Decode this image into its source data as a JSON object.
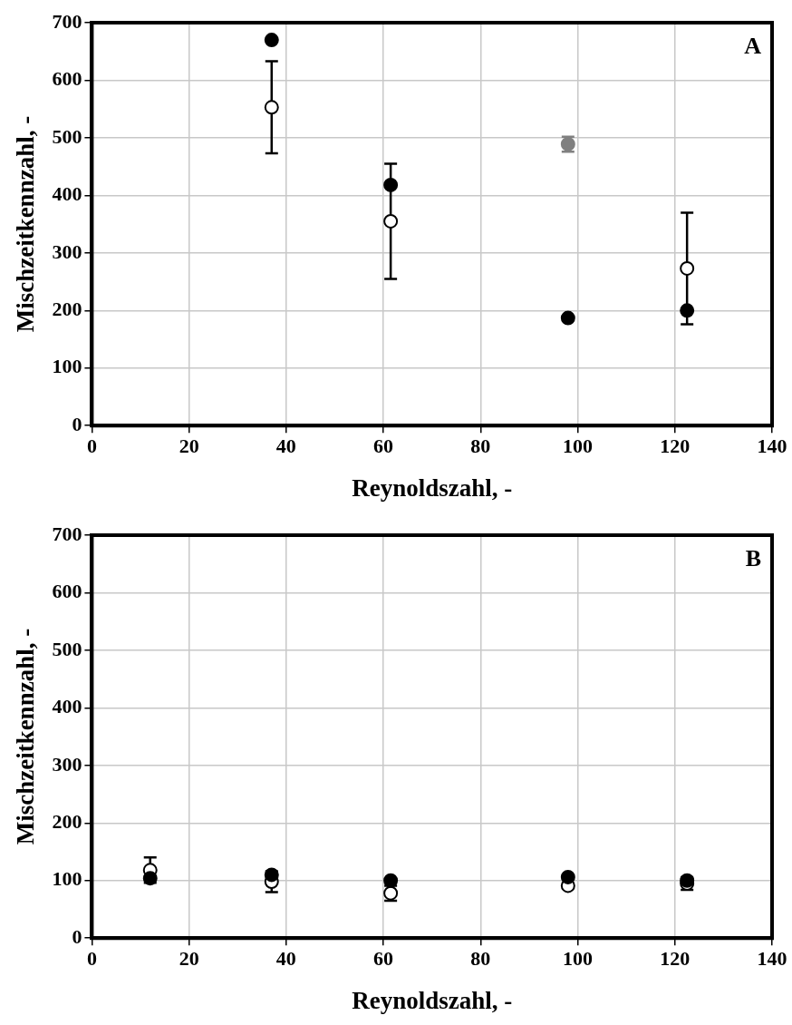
{
  "chart_data": [
    {
      "type": "scatter",
      "xlabel": "Reynoldszahl, -",
      "ylabel": "Mischzeitkennzahl, -",
      "annotations": [
        "A"
      ],
      "xlim": [
        0,
        140
      ],
      "xticks": [
        0,
        20,
        40,
        60,
        80,
        100,
        120,
        140
      ],
      "ylim": [
        0,
        700
      ],
      "yticks": [
        0,
        100,
        200,
        300,
        400,
        500,
        600,
        700
      ],
      "grid": true,
      "legend": false,
      "marker": "circle",
      "series": [
        {
          "color": "#000000",
          "x": [
            37,
            61.5,
            98,
            122.5
          ],
          "values": [
            670,
            418,
            187,
            200
          ]
        },
        {
          "color": "#ffffff",
          "x": [
            37,
            61.5,
            122.5
          ],
          "values": [
            553,
            355,
            273
          ],
          "errors": [
            80,
            100,
            97
          ]
        },
        {
          "color": "#808080",
          "x": [
            98
          ],
          "values": [
            489
          ],
          "errors": [
            13
          ]
        }
      ]
    },
    {
      "type": "scatter",
      "xlabel": "Reynoldszahl, -",
      "ylabel": "Mischzeitkennzahl, -",
      "annotations": [
        "B"
      ],
      "xlim": [
        0,
        140
      ],
      "xticks": [
        0,
        20,
        40,
        60,
        80,
        100,
        120,
        140
      ],
      "ylim": [
        0,
        700
      ],
      "yticks": [
        0,
        100,
        200,
        300,
        400,
        500,
        600,
        700
      ],
      "grid": true,
      "legend": false,
      "marker": "circle",
      "series": [
        {
          "color": "#000000",
          "x": [
            12,
            37,
            61.5,
            98,
            122.5
          ],
          "values": [
            104,
            110,
            100,
            106,
            100
          ]
        },
        {
          "color": "#ffffff",
          "x": [
            12,
            37,
            61.5,
            98,
            122.5
          ],
          "values": [
            118,
            98,
            78,
            91,
            95
          ],
          "errors": [
            22,
            18,
            13,
            null,
            11
          ]
        }
      ]
    }
  ]
}
